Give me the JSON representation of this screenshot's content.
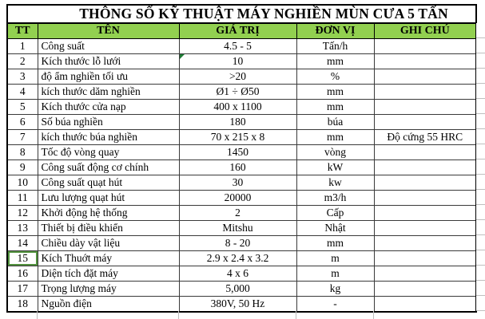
{
  "title": "THÔNG SỐ KỸ THUẬT MÁY NGHIỀN MÙN CƯA 5 TẤN",
  "table": {
    "headers": [
      "TT",
      "TÊN",
      "GIÁ TRỊ",
      "ĐƠN VỊ",
      "GHI CHÚ"
    ],
    "rows": [
      {
        "tt": "1",
        "ten": "Công suất",
        "gia_tri": "4.5 - 5",
        "don_vi": "Tấn/h",
        "ghi_chu": ""
      },
      {
        "tt": "2",
        "ten": "Kích thước lỗ lưới",
        "gia_tri": "10",
        "don_vi": "mm",
        "ghi_chu": "",
        "comment_indicator": true
      },
      {
        "tt": "3",
        "ten": "độ ẩm nghiền tối ưu",
        "gia_tri": ">20",
        "don_vi": "%",
        "ghi_chu": ""
      },
      {
        "tt": "4",
        "ten": "kích thước dăm nghiền",
        "gia_tri": "Ø1 ÷ Ø50",
        "don_vi": "mm",
        "ghi_chu": ""
      },
      {
        "tt": "5",
        "ten": "Kích thước cửa nạp",
        "gia_tri": "400 x 1100",
        "don_vi": "mm",
        "ghi_chu": ""
      },
      {
        "tt": "6",
        "ten": "Số búa nghiền",
        "gia_tri": "180",
        "don_vi": "búa",
        "ghi_chu": ""
      },
      {
        "tt": "7",
        "ten": "kích thước búa nghiền",
        "gia_tri": "70 x 215 x 8",
        "don_vi": "mm",
        "ghi_chu": "Độ cứng 55 HRC"
      },
      {
        "tt": "8",
        "ten": "Tốc độ vòng quay",
        "gia_tri": "1450",
        "don_vi": "vòng",
        "ghi_chu": ""
      },
      {
        "tt": "9",
        "ten": "Công suất động cơ chính",
        "gia_tri": "160",
        "don_vi": "kW",
        "ghi_chu": ""
      },
      {
        "tt": "10",
        "ten": "Công suất quạt hút",
        "gia_tri": "30",
        "don_vi": "kw",
        "ghi_chu": ""
      },
      {
        "tt": "11",
        "ten": "Lưu lượng quạt hút",
        "gia_tri": "20000",
        "don_vi": "m3/h",
        "ghi_chu": ""
      },
      {
        "tt": "12",
        "ten": "Khởi động hệ thống",
        "gia_tri": "2",
        "don_vi": "Cấp",
        "ghi_chu": ""
      },
      {
        "tt": "13",
        "ten": "Thiết bị điều khiển",
        "gia_tri": "Mitshu",
        "don_vi": "Nhật",
        "ghi_chu": ""
      },
      {
        "tt": "14",
        "ten": "Chiều dày vật liệu",
        "gia_tri": "8 - 20",
        "don_vi": "mm",
        "ghi_chu": ""
      },
      {
        "tt": "15",
        "ten": "Kích Thuớt máy",
        "gia_tri": "2.9 x 2.4 x 3.2",
        "don_vi": "m",
        "ghi_chu": "",
        "selected": true
      },
      {
        "tt": "16",
        "ten": "Diện tích đặt máy",
        "gia_tri": "4 x 6",
        "don_vi": "m",
        "ghi_chu": ""
      },
      {
        "tt": "17",
        "ten": "Trọng lượng máy",
        "gia_tri": "5,000",
        "don_vi": "kg",
        "ghi_chu": ""
      },
      {
        "tt": "18",
        "ten": "Nguồn điện",
        "gia_tri": "380V, 50 Hz",
        "don_vi": "-",
        "ghi_chu": ""
      }
    ]
  },
  "colors": {
    "header_bg": "#92d050",
    "border": "#000000",
    "grid_light": "#bfbfbf",
    "comment_triangle": "#1e7b34",
    "active_cell_border": "#52923e"
  }
}
